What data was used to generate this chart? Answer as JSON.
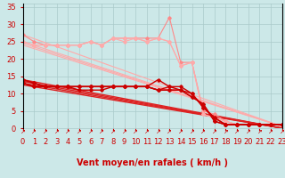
{
  "background_color": "#cce8e8",
  "grid_color": "#aacaca",
  "xlabel": "Vent moyen/en rafales ( km/h )",
  "xlim": [
    0,
    23
  ],
  "ylim": [
    0,
    36
  ],
  "yticks": [
    0,
    5,
    10,
    15,
    20,
    25,
    30,
    35
  ],
  "xticks": [
    0,
    1,
    2,
    3,
    4,
    5,
    6,
    7,
    8,
    9,
    10,
    11,
    12,
    13,
    14,
    15,
    16,
    17,
    18,
    19,
    20,
    21,
    22,
    23
  ],
  "xlabel_color": "#cc0000",
  "xlabel_fontsize": 7,
  "tick_label_color": "#cc0000",
  "tick_label_fontsize": 6,
  "curved_lines": [
    {
      "x": [
        0,
        1,
        2,
        3,
        4,
        5,
        6,
        7,
        8,
        9,
        10,
        11,
        12,
        13,
        14,
        15,
        16,
        17,
        18,
        19,
        20,
        21,
        22,
        23
      ],
      "y": [
        27,
        25,
        24,
        24,
        24,
        24,
        25,
        24,
        26,
        26,
        26,
        26,
        26,
        32,
        19,
        19,
        5,
        4,
        2,
        1,
        1,
        1,
        1,
        1
      ],
      "color": "#ff8888",
      "lw": 0.8,
      "marker": "D",
      "ms": 1.8
    },
    {
      "x": [
        0,
        1,
        2,
        3,
        4,
        5,
        6,
        7,
        8,
        9,
        10,
        11,
        12,
        13,
        14,
        15,
        16,
        17,
        18,
        19,
        20,
        21,
        22,
        23
      ],
      "y": [
        25,
        24,
        24,
        24,
        24,
        24,
        25,
        24,
        26,
        26,
        26,
        25,
        26,
        25,
        18,
        19,
        4,
        3,
        2,
        1,
        1,
        1,
        1,
        1
      ],
      "color": "#ffaaaa",
      "lw": 0.8,
      "marker": "D",
      "ms": 1.8
    },
    {
      "x": [
        0,
        1,
        2,
        3,
        4,
        5,
        6,
        7,
        8,
        9,
        10,
        11,
        12,
        13,
        14,
        15,
        16,
        17,
        18,
        19,
        20,
        21,
        22,
        23
      ],
      "y": [
        25,
        24,
        24,
        24,
        24,
        24,
        25,
        24,
        26,
        25,
        26,
        25,
        26,
        25,
        18,
        19,
        4,
        3,
        2,
        1,
        1,
        1,
        1,
        1
      ],
      "color": "#ffaaaa",
      "lw": 0.8,
      "marker": "D",
      "ms": 1.8
    },
    {
      "x": [
        0,
        1,
        2,
        3,
        4,
        5,
        6,
        7,
        8,
        9,
        10,
        11,
        12,
        13,
        14,
        15,
        16,
        17,
        18,
        19,
        20,
        21,
        22,
        23
      ],
      "y": [
        14,
        13,
        12,
        12,
        12,
        12,
        12,
        12,
        12,
        12,
        12,
        12,
        14,
        12,
        12,
        10,
        6,
        3,
        1,
        1,
        1,
        1,
        1,
        1
      ],
      "color": "#cc0000",
      "lw": 1.0,
      "marker": "D",
      "ms": 1.8
    },
    {
      "x": [
        0,
        1,
        2,
        3,
        4,
        5,
        6,
        7,
        8,
        9,
        10,
        11,
        12,
        13,
        14,
        15,
        16,
        17,
        18,
        19,
        20,
        21,
        22,
        23
      ],
      "y": [
        13,
        12,
        12,
        12,
        12,
        12,
        12,
        12,
        12,
        12,
        12,
        12,
        11,
        11,
        11,
        9,
        7,
        2,
        1,
        1,
        1,
        1,
        1,
        1
      ],
      "color": "#cc0000",
      "lw": 1.0,
      "marker": "D",
      "ms": 1.8
    },
    {
      "x": [
        0,
        1,
        2,
        3,
        4,
        5,
        6,
        7,
        8,
        9,
        10,
        11,
        12,
        13,
        14,
        15,
        16,
        17,
        18,
        19,
        20,
        21,
        22,
        23
      ],
      "y": [
        13,
        12,
        12,
        12,
        12,
        12,
        12,
        12,
        12,
        12,
        12,
        12,
        11,
        11,
        11,
        9,
        7,
        2,
        1,
        1,
        1,
        1,
        1,
        1
      ],
      "color": "#cc0000",
      "lw": 1.0,
      "marker": "D",
      "ms": 1.8
    },
    {
      "x": [
        0,
        1,
        2,
        3,
        4,
        5,
        6,
        7,
        8,
        9,
        10,
        11,
        12,
        13,
        14,
        15,
        16,
        17,
        18,
        19,
        20,
        21,
        22,
        23
      ],
      "y": [
        14,
        13,
        12,
        12,
        12,
        11,
        11,
        11,
        12,
        12,
        12,
        12,
        11,
        12,
        11,
        10,
        6,
        3,
        1,
        1,
        1,
        1,
        1,
        1
      ],
      "color": "#cc0000",
      "lw": 1.0,
      "marker": "D",
      "ms": 1.8
    }
  ],
  "straight_lines": [
    {
      "x0": 0,
      "y0": 27.0,
      "x1": 23,
      "y1": 0.5,
      "color": "#ffaaaa",
      "lw": 0.8
    },
    {
      "x0": 0,
      "y0": 25.0,
      "x1": 23,
      "y1": 0.5,
      "color": "#ffaaaa",
      "lw": 0.8
    },
    {
      "x0": 0,
      "y0": 24.5,
      "x1": 23,
      "y1": 0.5,
      "color": "#ffaaaa",
      "lw": 0.8
    },
    {
      "x0": 0,
      "y0": 24.0,
      "x1": 23,
      "y1": 0.5,
      "color": "#ffaaaa",
      "lw": 0.8
    },
    {
      "x0": 0,
      "y0": 14.0,
      "x1": 23,
      "y1": 0.0,
      "color": "#dd2222",
      "lw": 1.0
    },
    {
      "x0": 0,
      "y0": 13.5,
      "x1": 23,
      "y1": 0.0,
      "color": "#dd2222",
      "lw": 1.0
    },
    {
      "x0": 0,
      "y0": 13.0,
      "x1": 23,
      "y1": 0.0,
      "color": "#dd2222",
      "lw": 1.0
    },
    {
      "x0": 0,
      "y0": 12.5,
      "x1": 23,
      "y1": 0.0,
      "color": "#dd2222",
      "lw": 1.0
    }
  ]
}
